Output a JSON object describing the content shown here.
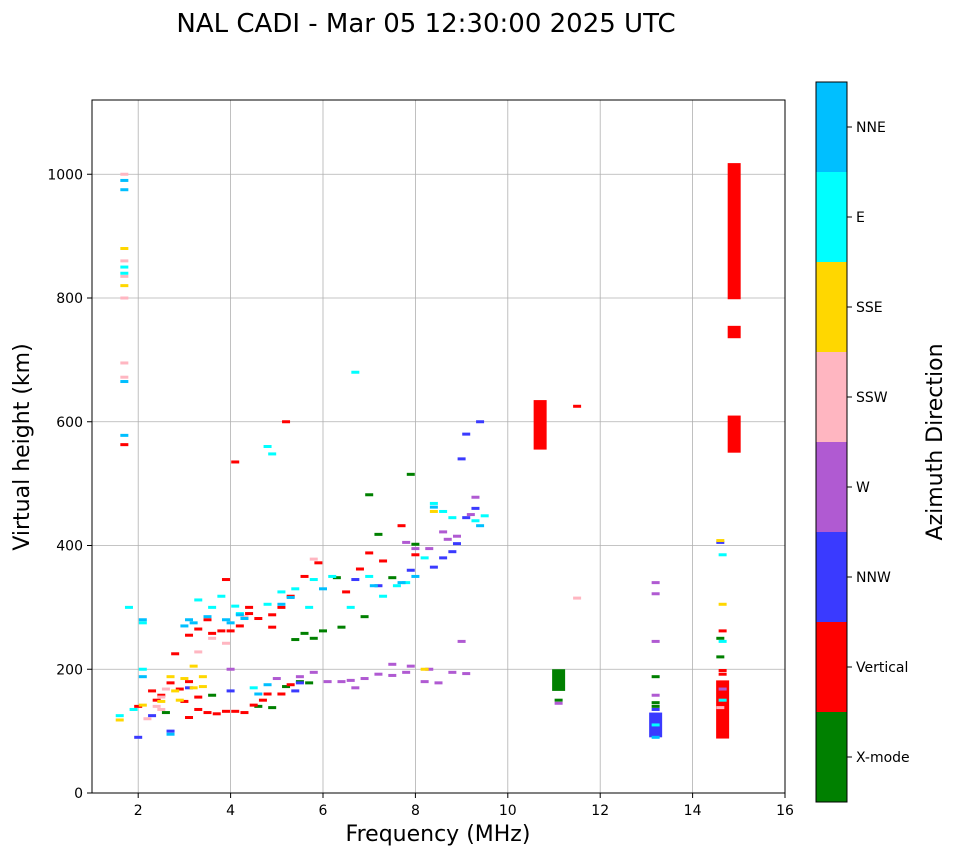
{
  "chart_data": {
    "type": "scatter",
    "title": "NAL CADI - Mar 05 12:30:00 2025 UTC",
    "xlabel": "Frequency (MHz)",
    "ylabel": "Virtual height (km)",
    "xlim": [
      1,
      16
    ],
    "ylim": [
      0,
      1120
    ],
    "xticks": [
      2,
      4,
      6,
      8,
      10,
      12,
      14,
      16
    ],
    "yticks": [
      0,
      200,
      400,
      600,
      800,
      1000
    ],
    "grid": true,
    "colorbar": {
      "label": "Azimuth Direction",
      "position": "right",
      "categories": [
        "X-mode",
        "Vertical",
        "NNW",
        "W",
        "SSW",
        "SSE",
        "E",
        "NNE"
      ],
      "colors": [
        "#008000",
        "#ff0000",
        "#3a3aff",
        "#b05ad2",
        "#ffb6c1",
        "#ffd700",
        "#00ffff",
        "#00bfff"
      ]
    },
    "columns": [
      {
        "f": 14.9,
        "cat": "Vertical",
        "h0": 798,
        "h1": 1018
      },
      {
        "f": 14.9,
        "cat": "Vertical",
        "h0": 735,
        "h1": 755
      },
      {
        "f": 14.9,
        "cat": "Vertical",
        "h0": 550,
        "h1": 610
      },
      {
        "f": 14.65,
        "cat": "Vertical",
        "h0": 88,
        "h1": 182
      },
      {
        "f": 10.7,
        "cat": "Vertical",
        "h0": 555,
        "h1": 635
      },
      {
        "f": 13.2,
        "cat": "NNW",
        "h0": 90,
        "h1": 130
      },
      {
        "f": 11.1,
        "cat": "X-mode",
        "h0": 165,
        "h1": 200
      }
    ],
    "series": [
      {
        "name": "X-mode",
        "points": [
          [
            3.6,
            158
          ],
          [
            4.6,
            140
          ],
          [
            5.2,
            172
          ],
          [
            5.5,
            180
          ],
          [
            5.7,
            178
          ],
          [
            5.8,
            250
          ],
          [
            6.0,
            262
          ],
          [
            6.3,
            348
          ],
          [
            6.4,
            268
          ],
          [
            6.9,
            285
          ],
          [
            7.2,
            418
          ],
          [
            7.5,
            348
          ],
          [
            7.9,
            515
          ],
          [
            8.0,
            402
          ],
          [
            13.2,
            188
          ],
          [
            13.2,
            146
          ],
          [
            13.2,
            140
          ],
          [
            11.1,
            190
          ],
          [
            11.1,
            150
          ],
          [
            14.6,
            220
          ],
          [
            14.6,
            250
          ],
          [
            7.0,
            482
          ],
          [
            5.6,
            258
          ],
          [
            5.4,
            248
          ],
          [
            4.9,
            138
          ],
          [
            2.6,
            130
          ]
        ]
      },
      {
        "name": "Vertical",
        "points": [
          [
            2.3,
            165
          ],
          [
            2.5,
            158
          ],
          [
            2.7,
            178
          ],
          [
            2.9,
            168
          ],
          [
            3.0,
            148
          ],
          [
            3.1,
            122
          ],
          [
            3.3,
            135
          ],
          [
            3.5,
            130
          ],
          [
            3.7,
            128
          ],
          [
            3.9,
            132
          ],
          [
            4.1,
            132
          ],
          [
            4.3,
            130
          ],
          [
            4.5,
            142
          ],
          [
            4.7,
            150
          ],
          [
            4.8,
            160
          ],
          [
            5.1,
            160
          ],
          [
            5.3,
            175
          ],
          [
            3.1,
            255
          ],
          [
            3.3,
            265
          ],
          [
            3.5,
            280
          ],
          [
            3.8,
            262
          ],
          [
            4.0,
            262
          ],
          [
            4.2,
            270
          ],
          [
            4.4,
            290
          ],
          [
            4.6,
            282
          ],
          [
            4.9,
            288
          ],
          [
            5.1,
            300
          ],
          [
            5.3,
            318
          ],
          [
            5.6,
            350
          ],
          [
            5.9,
            372
          ],
          [
            6.5,
            325
          ],
          [
            6.8,
            362
          ],
          [
            7.0,
            388
          ],
          [
            7.3,
            375
          ],
          [
            7.7,
            432
          ],
          [
            8.0,
            385
          ],
          [
            4.1,
            535
          ],
          [
            5.2,
            600
          ],
          [
            3.1,
            180
          ],
          [
            3.3,
            155
          ],
          [
            2.8,
            225
          ],
          [
            4.9,
            268
          ],
          [
            1.7,
            563
          ],
          [
            14.65,
            262
          ],
          [
            14.65,
            198
          ],
          [
            14.65,
            192
          ],
          [
            11.5,
            625
          ],
          [
            3.6,
            258
          ],
          [
            3.9,
            345
          ],
          [
            4.4,
            300
          ],
          [
            2.0,
            140
          ],
          [
            2.4,
            150
          ]
        ]
      },
      {
        "name": "NNW",
        "points": [
          [
            2.7,
            100
          ],
          [
            3.1,
            170
          ],
          [
            5.4,
            165
          ],
          [
            6.7,
            345
          ],
          [
            7.2,
            335
          ],
          [
            7.9,
            360
          ],
          [
            8.4,
            365
          ],
          [
            8.6,
            380
          ],
          [
            8.8,
            390
          ],
          [
            8.9,
            403
          ],
          [
            9.1,
            445
          ],
          [
            9.3,
            460
          ],
          [
            9.1,
            580
          ],
          [
            9.4,
            600
          ],
          [
            9.0,
            540
          ],
          [
            13.2,
            120
          ],
          [
            13.2,
            108
          ],
          [
            13.2,
            100
          ],
          [
            13.2,
            135
          ],
          [
            14.6,
            405
          ],
          [
            2.0,
            90
          ],
          [
            5.5,
            178
          ],
          [
            4.0,
            165
          ],
          [
            2.3,
            125
          ]
        ]
      },
      {
        "name": "W",
        "points": [
          [
            5.0,
            185
          ],
          [
            5.5,
            188
          ],
          [
            5.8,
            195
          ],
          [
            6.1,
            180
          ],
          [
            6.4,
            180
          ],
          [
            6.6,
            182
          ],
          [
            6.9,
            185
          ],
          [
            7.2,
            192
          ],
          [
            7.5,
            190
          ],
          [
            7.8,
            195
          ],
          [
            8.2,
            180
          ],
          [
            8.5,
            178
          ],
          [
            8.8,
            195
          ],
          [
            9.1,
            193
          ],
          [
            8.3,
            200
          ],
          [
            8.6,
            422
          ],
          [
            8.9,
            415
          ],
          [
            9.2,
            450
          ],
          [
            9.0,
            245
          ],
          [
            7.5,
            208
          ],
          [
            7.9,
            205
          ],
          [
            13.2,
            158
          ],
          [
            13.2,
            340
          ],
          [
            13.2,
            322
          ],
          [
            13.2,
            245
          ],
          [
            14.65,
            168
          ],
          [
            11.1,
            145
          ],
          [
            8.7,
            410
          ],
          [
            8.3,
            395
          ],
          [
            8.0,
            395
          ],
          [
            7.8,
            405
          ],
          [
            9.3,
            478
          ],
          [
            4.0,
            200
          ],
          [
            6.7,
            170
          ]
        ]
      },
      {
        "name": "SSW",
        "points": [
          [
            1.7,
            800
          ],
          [
            1.7,
            860
          ],
          [
            1.7,
            695
          ],
          [
            1.7,
            672
          ],
          [
            1.7,
            1000
          ],
          [
            2.5,
            135
          ],
          [
            2.5,
            155
          ],
          [
            2.6,
            168
          ],
          [
            2.4,
            140
          ],
          [
            3.3,
            228
          ],
          [
            3.6,
            250
          ],
          [
            3.9,
            242
          ],
          [
            4.3,
            285
          ],
          [
            2.2,
            120
          ],
          [
            5.8,
            378
          ],
          [
            11.5,
            315
          ],
          [
            14.6,
            138
          ],
          [
            1.7,
            835
          ]
        ]
      },
      {
        "name": "SSE",
        "points": [
          [
            1.6,
            118
          ],
          [
            2.1,
            142
          ],
          [
            2.5,
            148
          ],
          [
            2.8,
            165
          ],
          [
            3.0,
            185
          ],
          [
            3.2,
            170
          ],
          [
            3.4,
            172
          ],
          [
            3.2,
            205
          ],
          [
            2.7,
            188
          ],
          [
            1.7,
            880
          ],
          [
            1.7,
            820
          ],
          [
            8.4,
            455
          ],
          [
            14.65,
            305
          ],
          [
            14.6,
            408
          ],
          [
            8.2,
            200
          ],
          [
            3.4,
            188
          ],
          [
            2.9,
            150
          ]
        ]
      },
      {
        "name": "E",
        "points": [
          [
            1.6,
            125
          ],
          [
            1.9,
            135
          ],
          [
            2.1,
            200
          ],
          [
            3.6,
            300
          ],
          [
            3.3,
            312
          ],
          [
            3.8,
            318
          ],
          [
            4.1,
            302
          ],
          [
            4.2,
            290
          ],
          [
            4.8,
            305
          ],
          [
            5.1,
            325
          ],
          [
            5.4,
            330
          ],
          [
            5.8,
            345
          ],
          [
            6.2,
            350
          ],
          [
            6.6,
            300
          ],
          [
            7.3,
            318
          ],
          [
            7.6,
            335
          ],
          [
            7.8,
            340
          ],
          [
            8.2,
            380
          ],
          [
            8.6,
            455
          ],
          [
            8.8,
            445
          ],
          [
            9.3,
            440
          ],
          [
            9.5,
            448
          ],
          [
            14.65,
            385
          ],
          [
            14.65,
            245
          ],
          [
            14.65,
            150
          ],
          [
            13.2,
            110
          ],
          [
            6.7,
            680
          ],
          [
            4.8,
            560
          ],
          [
            4.9,
            548
          ],
          [
            1.7,
            840
          ],
          [
            1.7,
            850
          ],
          [
            8.4,
            468
          ],
          [
            5.7,
            300
          ],
          [
            7.0,
            350
          ],
          [
            4.5,
            170
          ],
          [
            1.8,
            300
          ],
          [
            2.1,
            275
          ]
        ]
      },
      {
        "name": "NNE",
        "points": [
          [
            1.7,
            990
          ],
          [
            1.7,
            975
          ],
          [
            1.7,
            665
          ],
          [
            1.7,
            578
          ],
          [
            2.1,
            188
          ],
          [
            2.1,
            280
          ],
          [
            3.0,
            270
          ],
          [
            3.1,
            280
          ],
          [
            3.2,
            275
          ],
          [
            3.9,
            280
          ],
          [
            4.0,
            275
          ],
          [
            4.3,
            282
          ],
          [
            4.6,
            160
          ],
          [
            4.8,
            175
          ],
          [
            5.1,
            305
          ],
          [
            7.1,
            335
          ],
          [
            7.7,
            340
          ],
          [
            8.0,
            350
          ],
          [
            8.4,
            462
          ],
          [
            9.4,
            432
          ],
          [
            13.2,
            90
          ],
          [
            2.7,
            95
          ],
          [
            3.5,
            285
          ],
          [
            4.2,
            288
          ],
          [
            5.3,
            316
          ],
          [
            6.0,
            330
          ]
        ]
      }
    ]
  }
}
